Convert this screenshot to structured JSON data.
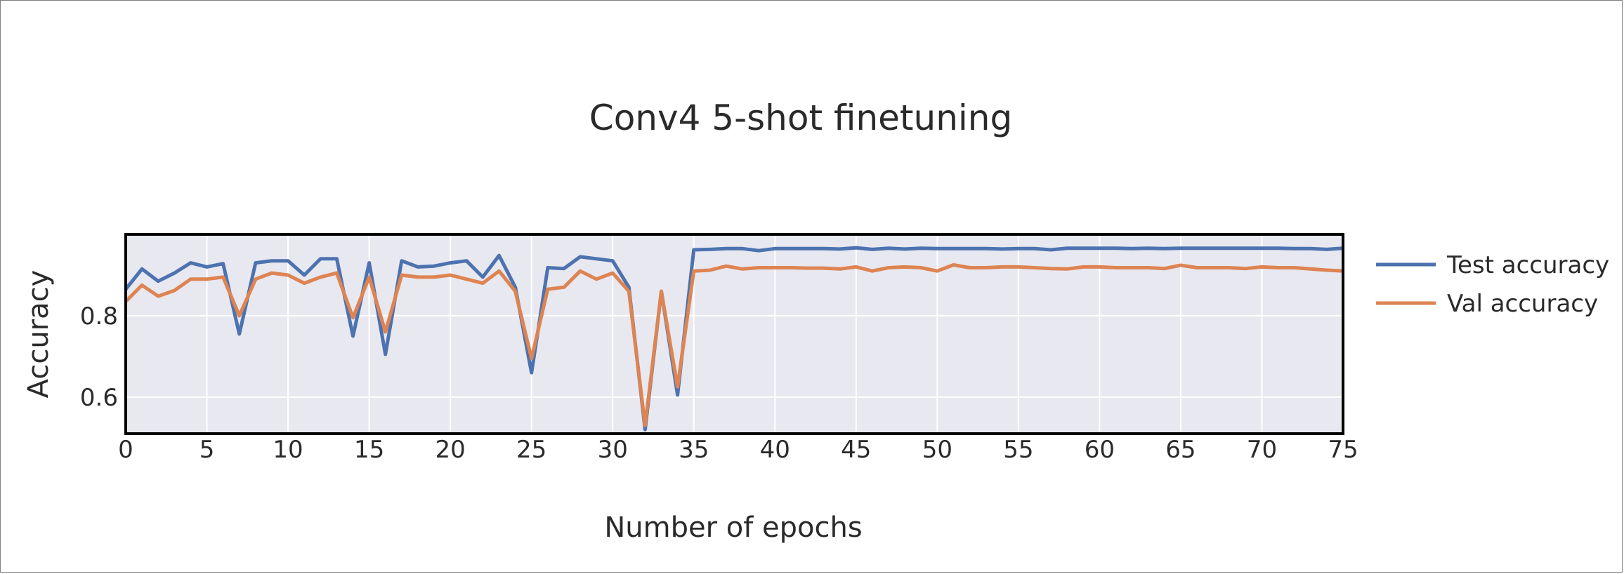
{
  "chart_data": {
    "type": "line",
    "title": "Conv4 5-shot finetuning",
    "xlabel": "Number of epochs",
    "ylabel": "Accuracy",
    "xlim": [
      0,
      75
    ],
    "ylim": [
      0.51,
      1.0
    ],
    "x_ticks": [
      "0",
      "5",
      "10",
      "15",
      "20",
      "25",
      "30",
      "35",
      "40",
      "45",
      "50",
      "55",
      "60",
      "65",
      "70",
      "75"
    ],
    "y_ticks": [
      "0.6",
      "0.8"
    ],
    "grid": true,
    "legend_position": "right",
    "x": [
      0,
      1,
      2,
      3,
      4,
      5,
      6,
      7,
      8,
      9,
      10,
      11,
      12,
      13,
      14,
      15,
      16,
      17,
      18,
      19,
      20,
      21,
      22,
      23,
      24,
      25,
      26,
      27,
      28,
      29,
      30,
      31,
      32,
      33,
      34,
      35,
      36,
      37,
      38,
      39,
      40,
      41,
      42,
      43,
      44,
      45,
      46,
      47,
      48,
      49,
      50,
      51,
      52,
      53,
      54,
      55,
      56,
      57,
      58,
      59,
      60,
      61,
      62,
      63,
      64,
      65,
      66,
      67,
      68,
      69,
      70,
      71,
      72,
      73,
      74,
      75
    ],
    "series": [
      {
        "name": "Test accuracy",
        "color": "#4c72b0",
        "values": [
          0.865,
          0.915,
          0.885,
          0.905,
          0.93,
          0.92,
          0.928,
          0.755,
          0.93,
          0.935,
          0.935,
          0.9,
          0.94,
          0.94,
          0.75,
          0.93,
          0.705,
          0.935,
          0.92,
          0.922,
          0.93,
          0.935,
          0.895,
          0.948,
          0.87,
          0.66,
          0.918,
          0.916,
          0.945,
          0.94,
          0.935,
          0.87,
          0.52,
          0.86,
          0.605,
          0.962,
          0.963,
          0.965,
          0.965,
          0.96,
          0.965,
          0.965,
          0.965,
          0.965,
          0.964,
          0.967,
          0.963,
          0.966,
          0.964,
          0.966,
          0.965,
          0.965,
          0.965,
          0.965,
          0.964,
          0.965,
          0.965,
          0.962,
          0.966,
          0.966,
          0.966,
          0.966,
          0.965,
          0.966,
          0.965,
          0.966,
          0.966,
          0.966,
          0.966,
          0.966,
          0.966,
          0.966,
          0.965,
          0.965,
          0.963,
          0.966
        ]
      },
      {
        "name": "Val accuracy",
        "color": "#dd8452",
        "values": [
          0.835,
          0.875,
          0.848,
          0.862,
          0.89,
          0.89,
          0.895,
          0.8,
          0.89,
          0.905,
          0.9,
          0.88,
          0.895,
          0.905,
          0.795,
          0.895,
          0.76,
          0.9,
          0.895,
          0.895,
          0.9,
          0.89,
          0.88,
          0.91,
          0.86,
          0.695,
          0.865,
          0.87,
          0.91,
          0.89,
          0.905,
          0.86,
          0.53,
          0.86,
          0.625,
          0.91,
          0.912,
          0.922,
          0.915,
          0.918,
          0.918,
          0.918,
          0.917,
          0.917,
          0.915,
          0.92,
          0.91,
          0.918,
          0.92,
          0.918,
          0.91,
          0.925,
          0.918,
          0.918,
          0.92,
          0.92,
          0.918,
          0.916,
          0.915,
          0.92,
          0.92,
          0.918,
          0.918,
          0.918,
          0.916,
          0.924,
          0.918,
          0.918,
          0.918,
          0.916,
          0.92,
          0.918,
          0.918,
          0.915,
          0.912,
          0.91
        ]
      }
    ]
  }
}
